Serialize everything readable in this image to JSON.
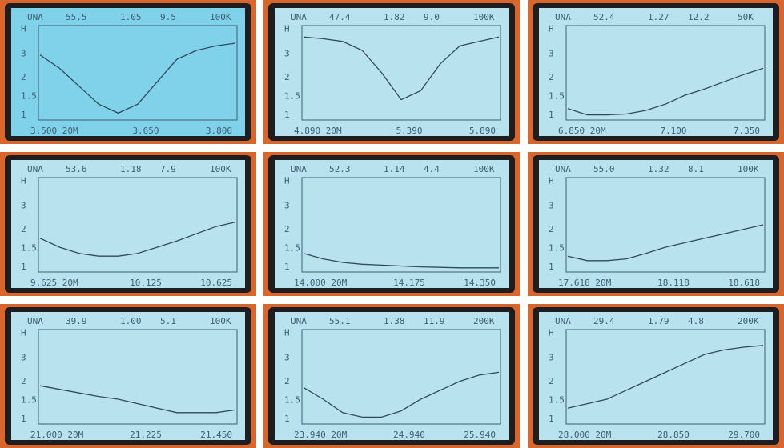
{
  "y_labels": [
    "H",
    "3",
    "2",
    "1.5",
    "1"
  ],
  "screens": [
    {
      "header": [
        "UNA",
        "55.5",
        "1.05",
        "9.5",
        "100K"
      ],
      "x_labels": [
        "3.500 20M",
        "3.650",
        "3.800"
      ],
      "curve": [
        7,
        5.5,
        3.5,
        1.5,
        0.5,
        1.5,
        4,
        6.5,
        7.5,
        8,
        8.3
      ]
    },
    {
      "header": [
        "UNA",
        "47.4",
        "1.82",
        "9.0",
        "100K"
      ],
      "x_labels": [
        "4.890 20M",
        "5.390",
        "5.890"
      ],
      "curve": [
        9,
        8.8,
        8.5,
        7.5,
        5,
        2,
        3,
        6,
        8,
        8.5,
        9
      ]
    },
    {
      "header": [
        "UNA",
        "52.4",
        "1.27",
        "12.2",
        "50K"
      ],
      "x_labels": [
        "6.850 20M",
        "7.100",
        "7.350"
      ],
      "curve": [
        1,
        0.3,
        0.3,
        0.4,
        0.8,
        1.5,
        2.5,
        3.2,
        4,
        4.8,
        5.5
      ]
    },
    {
      "header": [
        "UNA",
        "53.6",
        "1.18",
        "7.9",
        "100K"
      ],
      "x_labels": [
        "9.625 20M",
        "10.125",
        "10.625"
      ],
      "curve": [
        3.5,
        2.5,
        1.8,
        1.5,
        1.5,
        1.8,
        2.5,
        3.2,
        4,
        4.8,
        5.3
      ]
    },
    {
      "header": [
        "UNA",
        "52.3",
        "1.14",
        "4.4",
        "100K"
      ],
      "x_labels": [
        "14.000 20M",
        "14.175",
        "14.350"
      ],
      "curve": [
        1.8,
        1.2,
        0.8,
        0.6,
        0.5,
        0.4,
        0.3,
        0.25,
        0.2,
        0.2,
        0.2
      ]
    },
    {
      "header": [
        "UNA",
        "55.0",
        "1.32",
        "8.1",
        "100K"
      ],
      "x_labels": [
        "17.618 20M",
        "18.118",
        "18.618"
      ],
      "curve": [
        1.5,
        1,
        1,
        1.2,
        1.8,
        2.5,
        3,
        3.5,
        4,
        4.5,
        5
      ]
    },
    {
      "header": [
        "UNA",
        "39.9",
        "1.00",
        "5.1",
        "100K"
      ],
      "x_labels": [
        "21.000 20M",
        "21.225",
        "21.450"
      ],
      "curve": [
        4,
        3.6,
        3.2,
        2.8,
        2.5,
        2,
        1.5,
        1,
        1,
        1,
        1.3
      ]
    },
    {
      "header": [
        "UNA",
        "55.1",
        "1.38",
        "11.9",
        "200K"
      ],
      "x_labels": [
        "23.940 20M",
        "24.940",
        "25.940"
      ],
      "curve": [
        3.8,
        2.5,
        1,
        0.5,
        0.5,
        1.2,
        2.5,
        3.5,
        4.5,
        5.2,
        5.5
      ]
    },
    {
      "header": [
        "UNA",
        "29.4",
        "1.79",
        "4.8",
        "200K"
      ],
      "x_labels": [
        "28.000 20M",
        "28.850",
        "29.700"
      ],
      "curve": [
        1.5,
        2,
        2.5,
        3.5,
        4.5,
        5.5,
        6.5,
        7.5,
        8,
        8.3,
        8.5
      ]
    }
  ]
}
